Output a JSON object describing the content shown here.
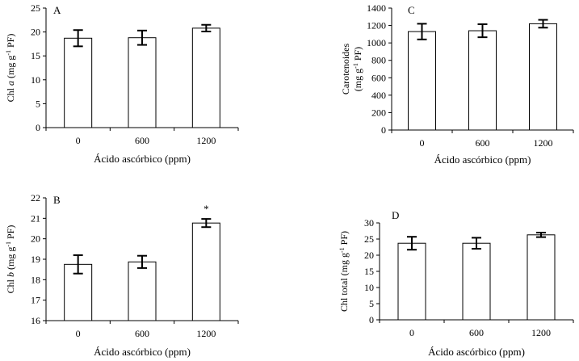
{
  "chart_data": [
    {
      "id": "A",
      "type": "bar",
      "panel_label": "A",
      "categories": [
        "0",
        "600",
        "1200"
      ],
      "values": [
        18.7,
        18.8,
        20.8
      ],
      "errors": [
        1.7,
        1.5,
        0.7
      ],
      "ylim": [
        0,
        25
      ],
      "yticks": [
        "0",
        "5",
        "10",
        "15",
        "20",
        "25"
      ],
      "xlabel": "Ácido ascórbico (ppm)",
      "ylabel_parts": [
        "Chl ",
        "a",
        " (mg g",
        "-1",
        " PF)"
      ],
      "annotations": [
        "",
        "",
        ""
      ]
    },
    {
      "id": "B",
      "type": "bar",
      "panel_label": "B",
      "categories": [
        "0",
        "600",
        "1200"
      ],
      "values": [
        18.75,
        18.87,
        20.77
      ],
      "errors": [
        0.45,
        0.3,
        0.2
      ],
      "ylim": [
        16,
        22
      ],
      "yticks": [
        "16",
        "17",
        "18",
        "19",
        "20",
        "21",
        "22"
      ],
      "xlabel": "Ácido ascórbico (ppm)",
      "ylabel_parts": [
        "Chl ",
        "b",
        " (mg g",
        "-1",
        " PF)"
      ],
      "annotations": [
        "",
        "",
        "*"
      ]
    },
    {
      "id": "C",
      "type": "bar",
      "panel_label": "C",
      "categories": [
        "0",
        "600",
        "1200"
      ],
      "values": [
        1130,
        1140,
        1220
      ],
      "errors": [
        90,
        75,
        45
      ],
      "ylim": [
        0,
        1400
      ],
      "yticks": [
        "0",
        "200",
        "400",
        "600",
        "800",
        "1000",
        "1200",
        "1400"
      ],
      "xlabel": "Ácido ascórbico (ppm)",
      "ylabel_line1": "Carotenoides",
      "ylabel_parts": [
        "(mg g",
        "-1",
        " PF)"
      ],
      "annotations": [
        "",
        "",
        ""
      ]
    },
    {
      "id": "D",
      "type": "bar",
      "panel_label": "D",
      "categories": [
        "0",
        "600",
        "1200"
      ],
      "values": [
        23.7,
        23.7,
        26.3
      ],
      "errors": [
        2.0,
        1.7,
        0.7
      ],
      "ylim": [
        0,
        30
      ],
      "yticks": [
        "0",
        "5",
        "10",
        "15",
        "20",
        "25",
        "30"
      ],
      "xlabel": "Ácido ascórbico (ppm)",
      "ylabel_parts": [
        "Chl total (mg g",
        "-1",
        " PF)"
      ],
      "annotations": [
        "",
        "",
        ""
      ]
    }
  ]
}
